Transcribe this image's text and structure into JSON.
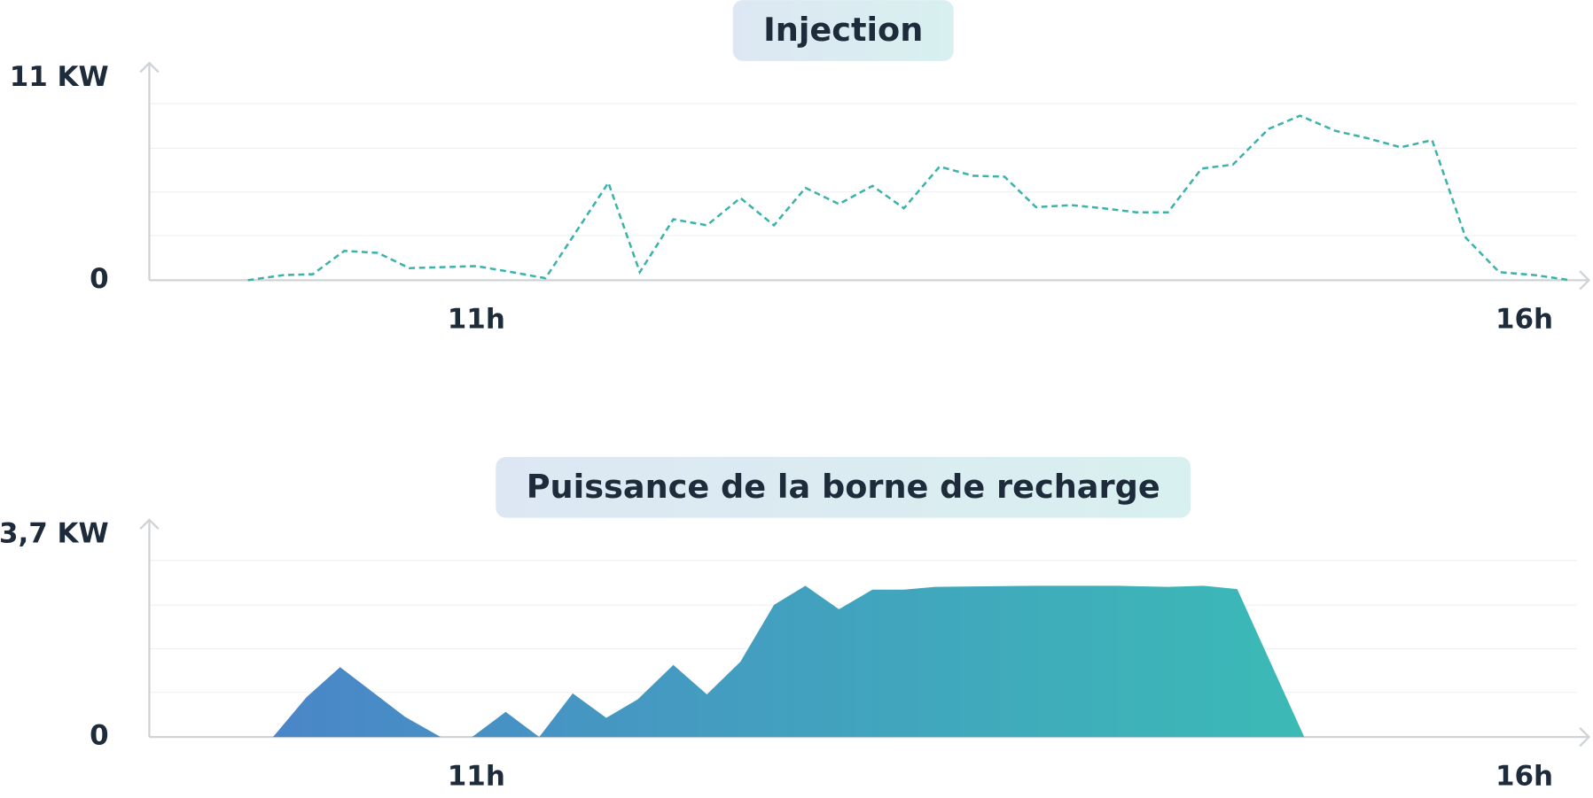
{
  "chart_data": [
    {
      "type": "line",
      "title": "Injection",
      "color": "#3bb3aa",
      "dashed": true,
      "grid": true,
      "x": [
        9.91,
        10.08,
        10.22,
        10.37,
        10.53,
        10.68,
        10.86,
        11.0,
        11.17,
        11.33,
        11.63,
        11.78,
        11.94,
        12.1,
        12.26,
        12.42,
        12.57,
        12.73,
        12.89,
        13.04,
        13.21,
        13.37,
        13.52,
        13.67,
        13.84,
        13.99,
        14.15,
        14.3,
        14.46,
        14.61,
        14.78,
        14.93,
        15.1,
        15.25,
        15.41,
        15.56,
        15.72,
        15.88,
        16.05,
        16.22
      ],
      "values": [
        0,
        0.28,
        0.33,
        1.6,
        1.49,
        0.66,
        0.72,
        0.77,
        0.44,
        0.11,
        5.31,
        0.44,
        3.32,
        2.99,
        4.48,
        2.99,
        5.03,
        4.15,
        5.14,
        3.92,
        6.19,
        5.69,
        5.64,
        3.98,
        4.09,
        3.92,
        3.7,
        3.7,
        6.08,
        6.3,
        8.24,
        8.96,
        8.13,
        7.74,
        7.24,
        7.63,
        2.32,
        0.44,
        0.28,
        0
      ],
      "xlim": [
        9.44,
        16.25
      ],
      "xticks": [
        {
          "value": 11,
          "label": "11h"
        },
        {
          "value": 16,
          "label": "16h"
        }
      ],
      "ylim": [
        0,
        11
      ],
      "yticks": [
        0,
        {
          "value": 11,
          "label": "11 KW"
        }
      ]
    },
    {
      "type": "area",
      "title": "Puissance de la borne de recharge",
      "colors": [
        "#4a86c8",
        "#3bbab6"
      ],
      "grid": true,
      "x": [
        10.03,
        10.19,
        10.35,
        10.66,
        10.83,
        10.98,
        11.14,
        11.3,
        11.46,
        11.62,
        11.77,
        11.94,
        12.1,
        12.26,
        12.42,
        12.57,
        12.73,
        12.89,
        13.04,
        13.19,
        13.67,
        14.06,
        14.3,
        14.47,
        14.63,
        14.95
      ],
      "values": [
        0,
        0.73,
        1.28,
        0.37,
        0,
        0,
        0.46,
        0,
        0.8,
        0.35,
        0.69,
        1.32,
        0.78,
        1.38,
        2.42,
        2.77,
        2.34,
        2.7,
        2.7,
        2.75,
        2.77,
        2.77,
        2.75,
        2.77,
        2.71,
        0
      ],
      "xlim": [
        9.44,
        16.25
      ],
      "xticks": [
        {
          "value": 11,
          "label": "11h"
        },
        {
          "value": 16,
          "label": "16h"
        }
      ],
      "ylim": [
        0,
        3.7
      ],
      "yticks": [
        0,
        {
          "value": 3.7,
          "label": "3,7 KW"
        }
      ]
    }
  ]
}
